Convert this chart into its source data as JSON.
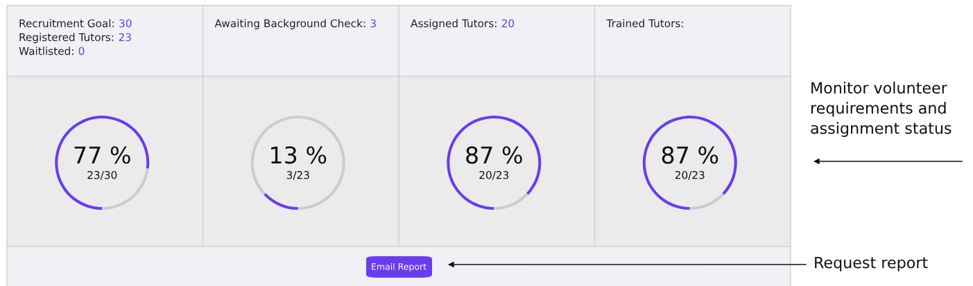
{
  "chart_data": [
    {
      "type": "donut",
      "title": "Recruitment Goal: 30",
      "subtitle": "Registered Tutors: 23\nWaitlisted: 0",
      "categories": [
        null,
        null
      ],
      "values": [
        77,
        23
      ],
      "colors": [
        "#6a3cf0",
        "#cccccc"
      ],
      "annotations": [
        "77 %",
        "23/30"
      ]
    },
    {
      "type": "donut",
      "title": "Awaiting Background Check: 3",
      "categories": [
        null,
        null
      ],
      "values": [
        13,
        87
      ],
      "colors": [
        "#6a3cf0",
        "#cccccc"
      ],
      "annotations": [
        "13 %",
        "3/23"
      ]
    },
    {
      "type": "donut",
      "title": "Assigned Tutors: 20",
      "categories": [
        null,
        null
      ],
      "values": [
        87,
        13
      ],
      "colors": [
        "#6a3cf0",
        "#cccccc"
      ],
      "annotations": [
        "87 %",
        "20/23"
      ]
    },
    {
      "type": "donut",
      "title": "Trained Tutors:",
      "categories": [
        null,
        null
      ],
      "values": [
        87,
        13
      ],
      "colors": [
        "#6a3cf0",
        "#cccccc"
      ],
      "annotations": [
        "87 %",
        "20/23"
      ]
    },
    {
      "type": "other",
      "annotations": [
        "Email Report",
        "Monitor volunteer requirements and assignment status",
        "Request report"
      ]
    }
  ]
}
